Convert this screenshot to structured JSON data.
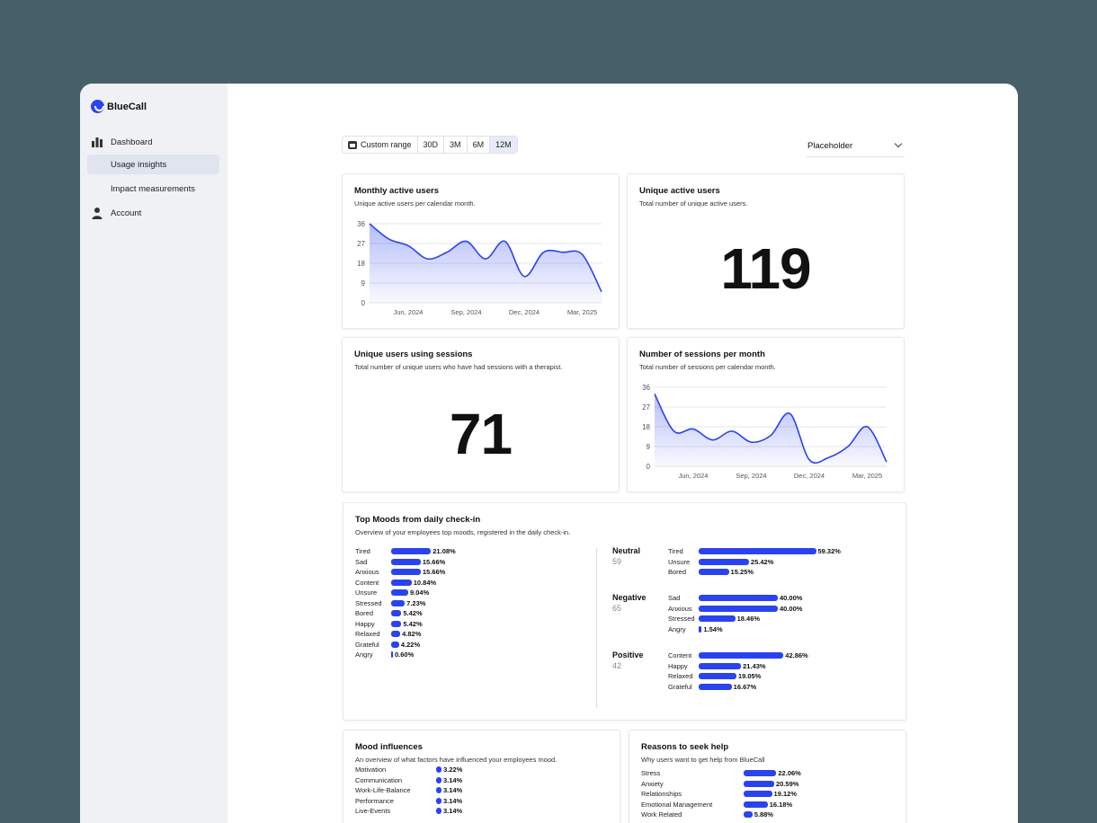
{
  "brand": {
    "name": "BlueCall"
  },
  "sidebar": {
    "items": [
      {
        "label": "Dashboard",
        "icon": "bar-chart-icon"
      },
      {
        "label": "Usage insights",
        "active": true
      },
      {
        "label": "Impact measurements"
      },
      {
        "label": "Account",
        "icon": "person-icon"
      }
    ]
  },
  "toolbar": {
    "range_options": [
      "Custom range",
      "30D",
      "3M",
      "6M",
      "12M"
    ],
    "active_range": "12M",
    "select_value": "Placeholder"
  },
  "cards": {
    "monthly_active": {
      "title": "Monthly active users",
      "subtitle": "Unique active users per calendar month."
    },
    "unique_active": {
      "title": "Unique active users",
      "subtitle": "Total number of unique active users.",
      "value": "119"
    },
    "unique_sessions": {
      "title": "Unique users using sessions",
      "subtitle": "Total number of unique users who have had sessions with a therapist.",
      "value": "71"
    },
    "sessions_month": {
      "title": "Number of sessions per month",
      "subtitle": "Total number of sessions per calendar month."
    },
    "top_moods": {
      "title": "Top Moods from daily check-in",
      "subtitle": "Overview of your employees top moods, registered in the daily check-in."
    },
    "mood_influences": {
      "title": "Mood influences",
      "subtitle": "An overview of what factors have influenced your employees mood."
    },
    "reasons": {
      "title": "Reasons to seek help",
      "subtitle": "Why users want to get help from BlueCall"
    }
  },
  "chart_data": [
    {
      "type": "area",
      "name": "monthly_active_users",
      "x": [
        "Apr, 2024",
        "May, 2024",
        "Jun, 2024",
        "Jul, 2024",
        "Aug, 2024",
        "Sep, 2024",
        "Oct, 2024",
        "Nov, 2024",
        "Dec, 2024",
        "Jan, 2025",
        "Feb, 2025",
        "Mar, 2025",
        "Apr, 2025"
      ],
      "values": [
        36,
        29,
        26,
        20,
        23,
        28,
        20,
        28,
        12,
        23,
        23,
        22,
        5
      ],
      "yticks": [
        0,
        9,
        18,
        27,
        36
      ],
      "xtick_labels": [
        "Jun, 2024",
        "Sep, 2024",
        "Dec, 2024",
        "Mar, 2025"
      ],
      "ylim": [
        0,
        36
      ]
    },
    {
      "type": "area",
      "name": "sessions_per_month",
      "x": [
        "Apr, 2024",
        "May, 2024",
        "Jun, 2024",
        "Jul, 2024",
        "Aug, 2024",
        "Sep, 2024",
        "Oct, 2024",
        "Nov, 2024",
        "Dec, 2024",
        "Jan, 2025",
        "Feb, 2025",
        "Mar, 2025",
        "Apr, 2025"
      ],
      "values": [
        33,
        16,
        17,
        12,
        16,
        11,
        14,
        24,
        3,
        4,
        9,
        18,
        2
      ],
      "yticks": [
        0,
        9,
        18,
        27,
        36
      ],
      "xtick_labels": [
        "Jun, 2024",
        "Sep, 2024",
        "Dec, 2024",
        "Mar, 2025"
      ],
      "ylim": [
        0,
        36
      ]
    }
  ],
  "moods_overall": [
    {
      "label": "Tired",
      "pct": "21.08%",
      "v": 21.08
    },
    {
      "label": "Sad",
      "pct": "15.66%",
      "v": 15.66
    },
    {
      "label": "Anxious",
      "pct": "15.66%",
      "v": 15.66
    },
    {
      "label": "Content",
      "pct": "10.84%",
      "v": 10.84
    },
    {
      "label": "Unsure",
      "pct": "9.04%",
      "v": 9.04
    },
    {
      "label": "Stressed",
      "pct": "7.23%",
      "v": 7.23
    },
    {
      "label": "Bored",
      "pct": "5.42%",
      "v": 5.42
    },
    {
      "label": "Happy",
      "pct": "5.42%",
      "v": 5.42
    },
    {
      "label": "Relaxed",
      "pct": "4.82%",
      "v": 4.82
    },
    {
      "label": "Grateful",
      "pct": "4.22%",
      "v": 4.22
    },
    {
      "label": "Angry",
      "pct": "0.60%",
      "v": 0.6
    }
  ],
  "mood_groups": [
    {
      "name": "Neutral",
      "count": "59",
      "items": [
        {
          "label": "Tired",
          "pct": "59.32%",
          "v": 59.32
        },
        {
          "label": "Unsure",
          "pct": "25.42%",
          "v": 25.42
        },
        {
          "label": "Bored",
          "pct": "15.25%",
          "v": 15.25
        }
      ]
    },
    {
      "name": "Negative",
      "count": "65",
      "items": [
        {
          "label": "Sad",
          "pct": "40.00%",
          "v": 40.0
        },
        {
          "label": "Anxious",
          "pct": "40.00%",
          "v": 40.0
        },
        {
          "label": "Stressed",
          "pct": "18.46%",
          "v": 18.46
        },
        {
          "label": "Angry",
          "pct": "1.54%",
          "v": 1.54
        }
      ]
    },
    {
      "name": "Positive",
      "count": "42",
      "items": [
        {
          "label": "Content",
          "pct": "42.86%",
          "v": 42.86
        },
        {
          "label": "Happy",
          "pct": "21.43%",
          "v": 21.43
        },
        {
          "label": "Relaxed",
          "pct": "19.05%",
          "v": 19.05
        },
        {
          "label": "Grateful",
          "pct": "16.67%",
          "v": 16.67
        }
      ]
    }
  ],
  "influences": [
    {
      "label": "Motivation",
      "pct": "3.22%",
      "v": 3.22
    },
    {
      "label": "Communication",
      "pct": "3.14%",
      "v": 3.14
    },
    {
      "label": "Work-Life-Balance",
      "pct": "3.14%",
      "v": 3.14
    },
    {
      "label": "Performance",
      "pct": "3.14%",
      "v": 3.14
    },
    {
      "label": "Live-Events",
      "pct": "3.14%",
      "v": 3.14
    }
  ],
  "reasons": [
    {
      "label": "Stress",
      "pct": "22.06%",
      "v": 22.06
    },
    {
      "label": "Anxiety",
      "pct": "20.59%",
      "v": 20.59
    },
    {
      "label": "Relationships",
      "pct": "19.12%",
      "v": 19.12
    },
    {
      "label": "Emotional Management",
      "pct": "16.18%",
      "v": 16.18
    },
    {
      "label": "Work Related",
      "pct": "5.88%",
      "v": 5.88
    }
  ],
  "colors": {
    "accent": "#2a43f0",
    "background": "#475f68",
    "sidebar": "#eff1f4"
  }
}
